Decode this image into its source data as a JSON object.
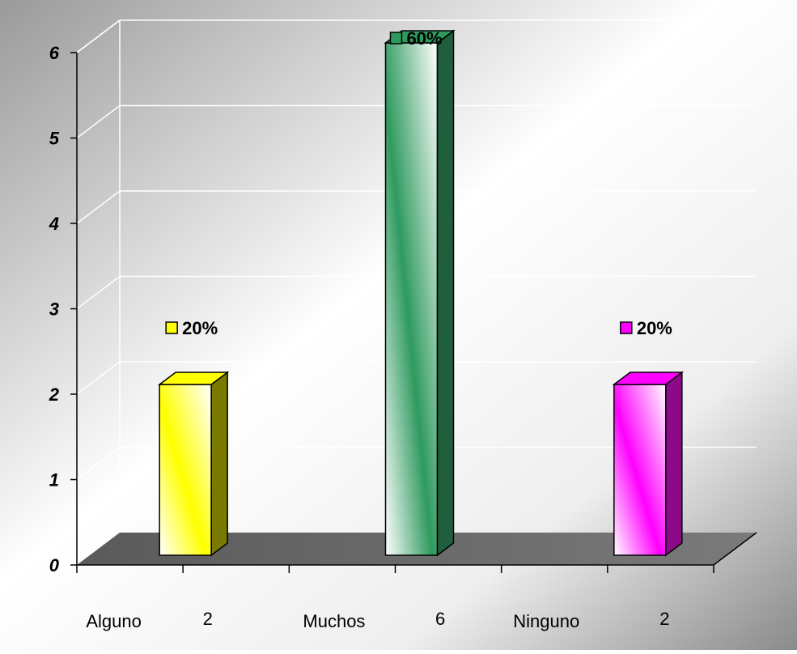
{
  "chart_data": {
    "type": "bar",
    "style": "3d",
    "ylim": [
      0,
      6
    ],
    "yticks": [
      "0",
      "1",
      "2",
      "3",
      "4",
      "5",
      "6"
    ],
    "grid": true,
    "bars": [
      {
        "category": "Alguno",
        "value": 2,
        "value_label": "2",
        "percent_label": "20%",
        "color": "#ffff00",
        "dark": "#7a7a00"
      },
      {
        "category": "Muchos",
        "value": 6,
        "value_label": "6",
        "percent_label": "60%",
        "color": "#2e9a5e",
        "dark": "#1f5f3c"
      },
      {
        "category": "Ninguno",
        "value": 2,
        "value_label": "2",
        "percent_label": "20%",
        "color": "#ff00ff",
        "dark": "#8a0a8a"
      }
    ]
  }
}
